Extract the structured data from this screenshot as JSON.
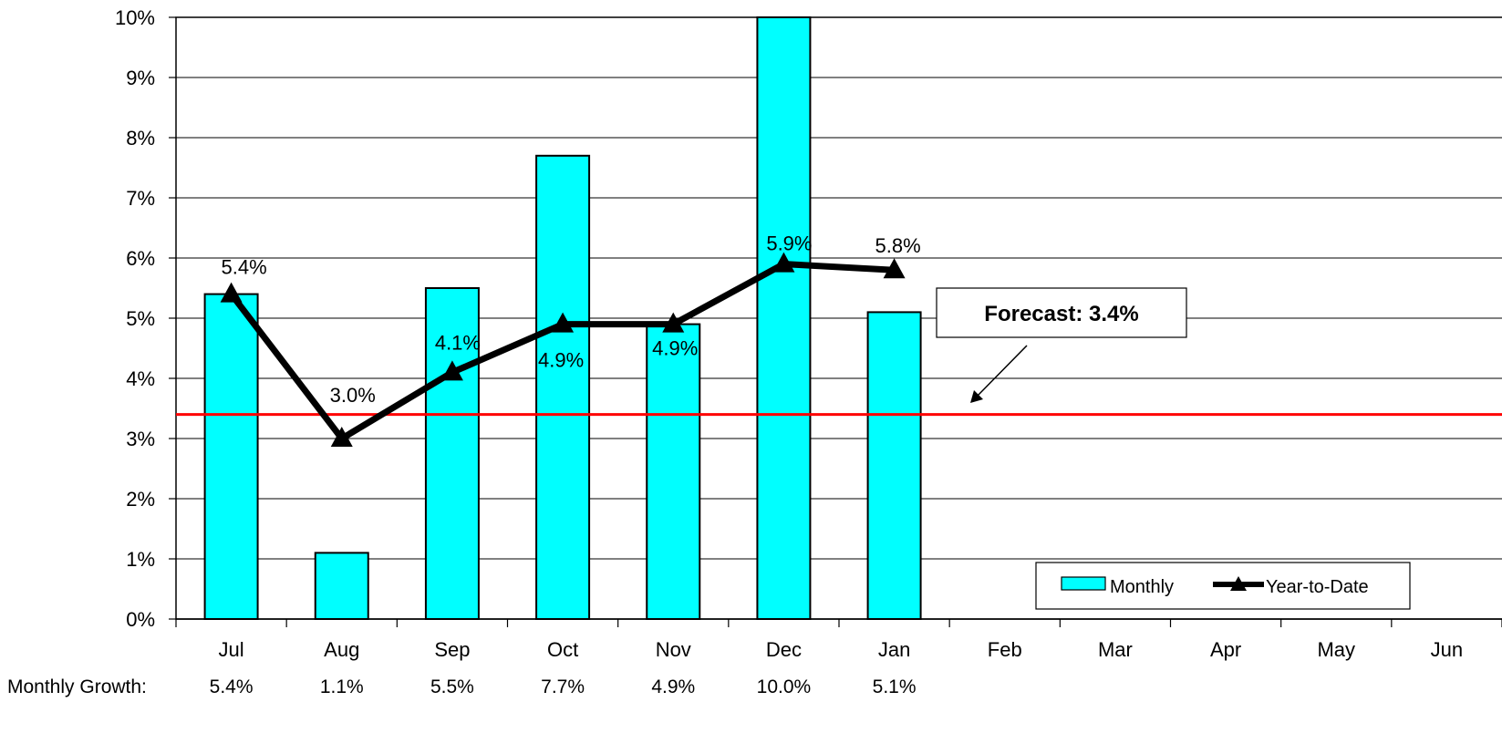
{
  "chart_data": {
    "type": "bar",
    "categories": [
      "Jul",
      "Aug",
      "Sep",
      "Oct",
      "Nov",
      "Dec",
      "Jan",
      "Feb",
      "Mar",
      "Apr",
      "May",
      "Jun"
    ],
    "series": [
      {
        "name": "Monthly",
        "type": "bar",
        "values": [
          5.4,
          1.1,
          5.5,
          7.7,
          4.9,
          10.0,
          5.1,
          null,
          null,
          null,
          null,
          null
        ],
        "color": "#00FFFF"
      },
      {
        "name": "Year-to-Date",
        "type": "line",
        "marker": "triangle",
        "values": [
          5.4,
          3.0,
          4.1,
          4.9,
          4.9,
          5.9,
          5.8,
          null,
          null,
          null,
          null,
          null
        ],
        "color": "#000000"
      }
    ],
    "ytd_labels": [
      "5.4%",
      "3.0%",
      "4.1%",
      "4.9%",
      "4.9%",
      "5.9%",
      "5.8%"
    ],
    "yticks": [
      "0%",
      "1%",
      "2%",
      "3%",
      "4%",
      "5%",
      "6%",
      "7%",
      "8%",
      "9%",
      "10%"
    ],
    "ylim": [
      0,
      10
    ],
    "grid": true,
    "forecast": {
      "value": 3.4,
      "label": "Forecast: 3.4%",
      "color": "#FF0000"
    },
    "monthly_growth_row": {
      "label": "Monthly Growth:",
      "values": [
        "5.4%",
        "1.1%",
        "5.5%",
        "7.7%",
        "4.9%",
        "10.0%",
        "5.1%"
      ]
    },
    "legend": {
      "position": "bottom-right",
      "items": [
        "Monthly",
        "Year-to-Date"
      ]
    }
  }
}
